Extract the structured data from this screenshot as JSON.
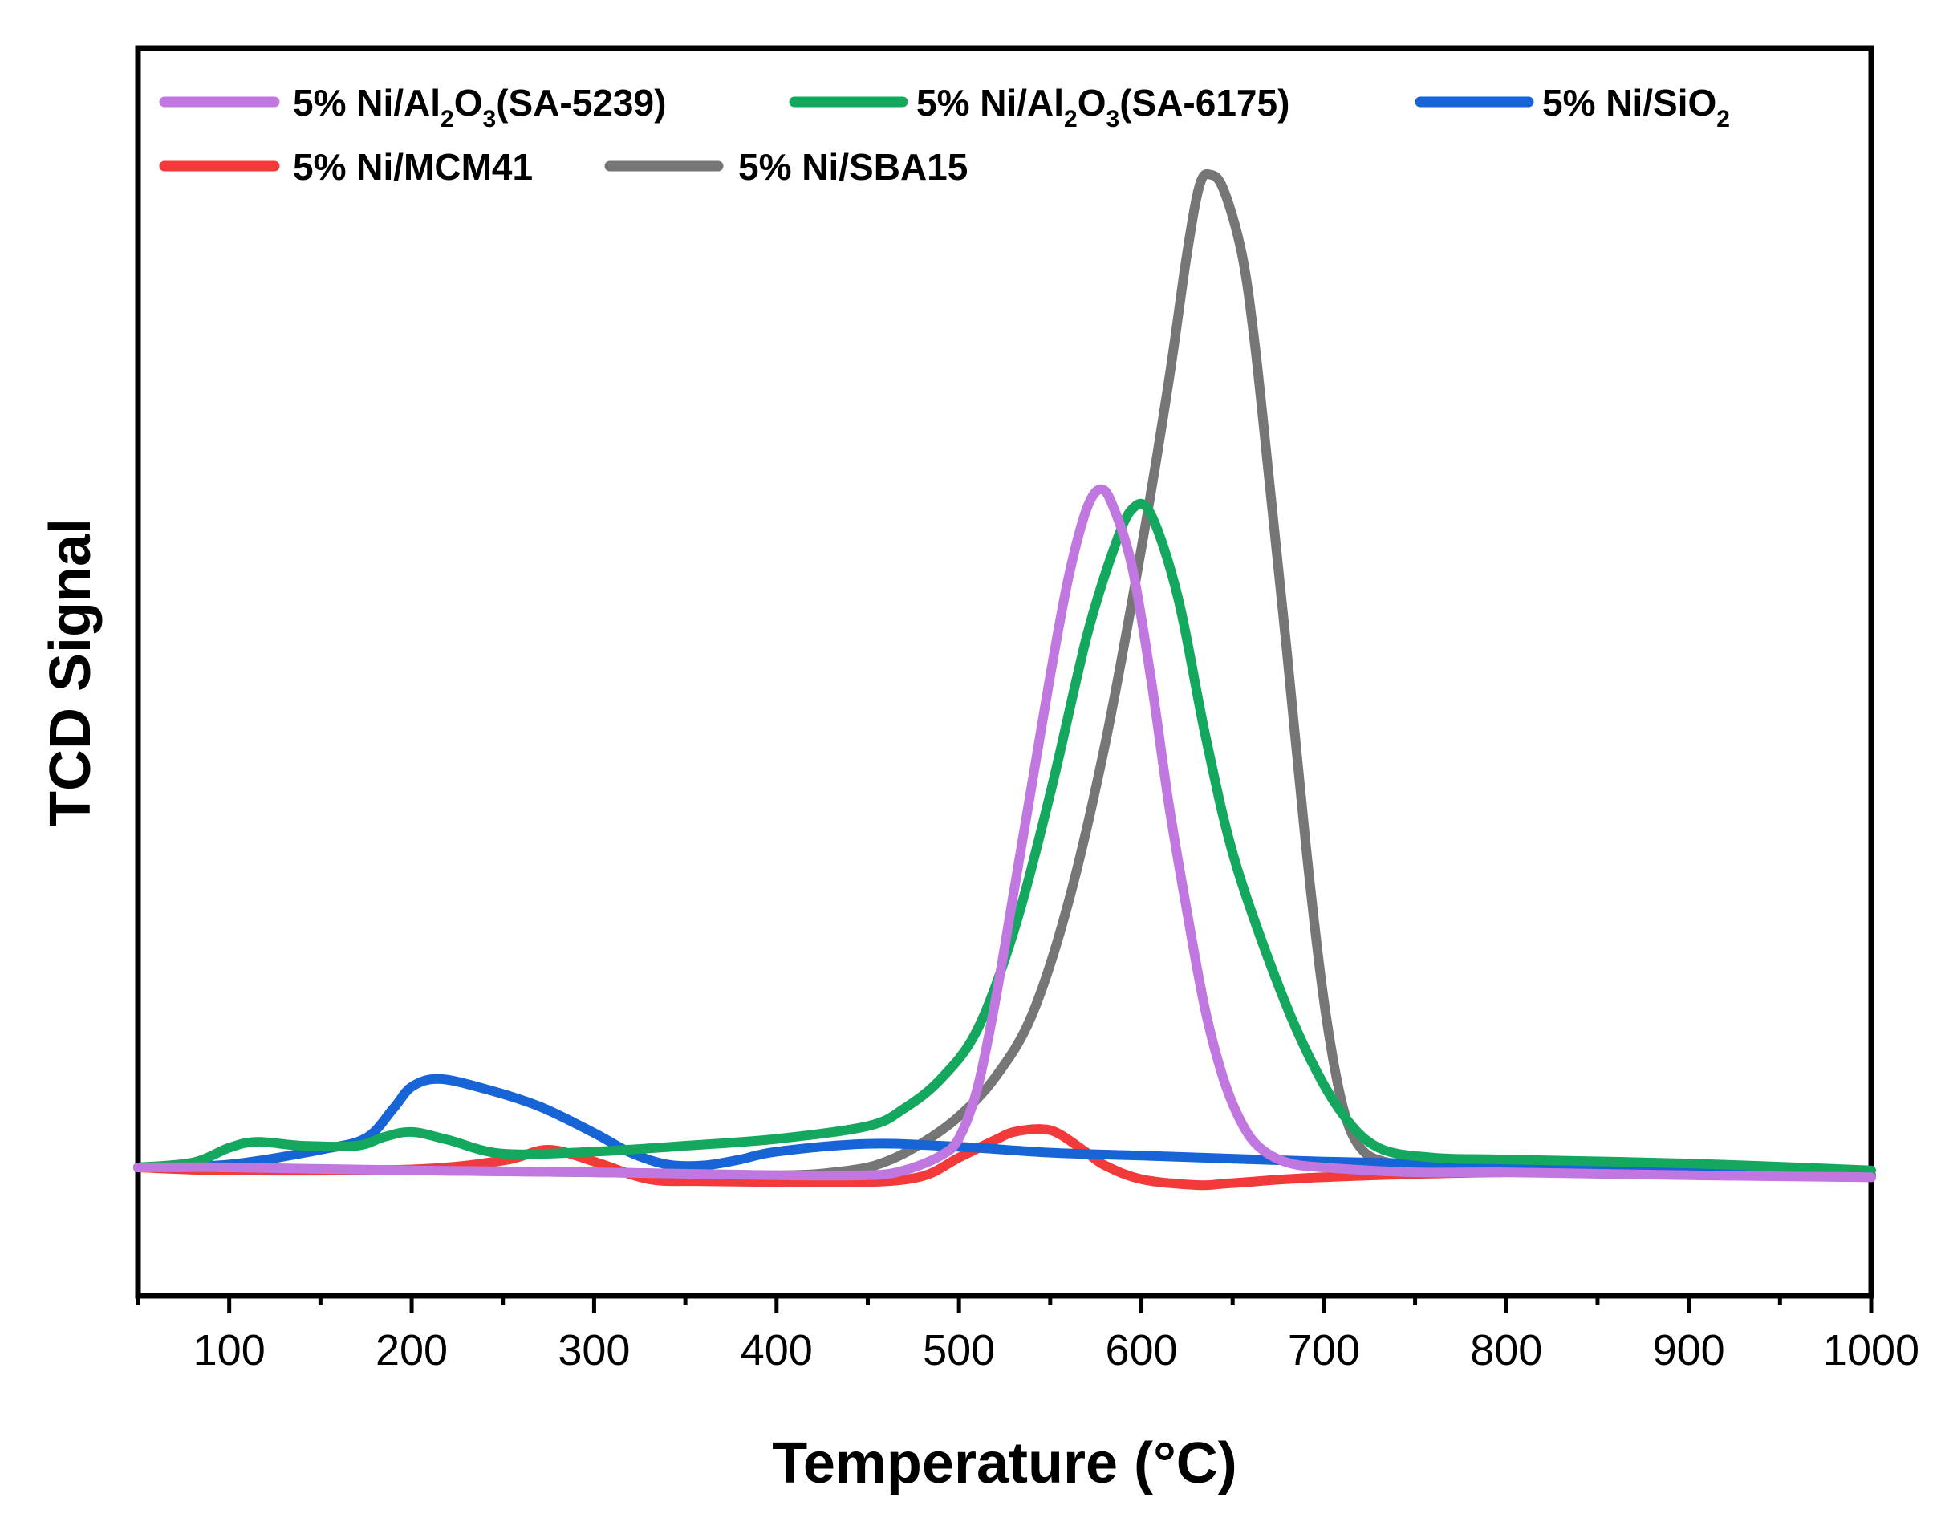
{
  "chart_data": {
    "type": "line",
    "title": "",
    "xlabel": "Temperature (°C)",
    "ylabel": "TCD Signal",
    "xlim": [
      50,
      1000
    ],
    "ylim": [
      -10,
      100
    ],
    "x_ticks": [
      100,
      200,
      300,
      400,
      500,
      600,
      700,
      800,
      900,
      1000
    ],
    "x_tick_labels": [
      "100",
      "200",
      "300",
      "400",
      "500",
      "600",
      "700",
      "800",
      "900",
      "1000"
    ],
    "y_ticks_shown": false,
    "legend_position": "top-left",
    "legend_parts": [
      {
        "series": "5% Ni/Al2O3(SA-5239)",
        "text": "5% Ni/Al",
        "sub1": "2",
        "mid": "O",
        "sub2": "3",
        "tail": "(SA-5239)"
      },
      {
        "series": "5% Ni/Al2O3(SA-6175)",
        "text": "5% Ni/Al",
        "sub1": "2",
        "mid": "O",
        "sub2": "3",
        "tail": "(SA-6175)"
      },
      {
        "series": "5% Ni/SiO2",
        "text": "5% Ni/SiO",
        "sub1": "2",
        "mid": "",
        "sub2": "",
        "tail": ""
      },
      {
        "series": "5% Ni/MCM41",
        "text": "5% Ni/MCM41",
        "sub1": "",
        "mid": "",
        "sub2": "",
        "tail": ""
      },
      {
        "series": "5% Ni/SBA15",
        "text": "5% Ni/SBA15",
        "sub1": "",
        "mid": "",
        "sub2": "",
        "tail": ""
      }
    ],
    "series": [
      {
        "name": "5% Ni/Al2O3(SA-5239)",
        "color": "#c177e0",
        "x": [
          50,
          100,
          200,
          300,
          400,
          450,
          470,
          490,
          500,
          510,
          520,
          530,
          540,
          550,
          560,
          570,
          578,
          585,
          595,
          605,
          615,
          625,
          635,
          645,
          655,
          665,
          680,
          700,
          750,
          800,
          900,
          1000
        ],
        "y": [
          0,
          0,
          -0.3,
          -0.5,
          -0.8,
          -0.8,
          -0.3,
          1.2,
          3,
          8,
          17,
          28,
          39,
          50,
          60,
          67,
          69,
          67,
          61,
          50,
          37,
          26,
          16,
          9,
          4.5,
          2,
          0.5,
          0,
          -0.5,
          -0.5,
          -0.8,
          -1
        ]
      },
      {
        "name": "5% Ni/Al2O3(SA-6175)",
        "color": "#14a85e",
        "x": [
          50,
          80,
          100,
          115,
          140,
          170,
          185,
          200,
          220,
          250,
          300,
          350,
          400,
          450,
          470,
          490,
          510,
          530,
          550,
          570,
          585,
          595,
          605,
          620,
          635,
          650,
          670,
          690,
          710,
          730,
          760,
          800,
          900,
          1000
        ],
        "y": [
          0,
          0.5,
          2,
          2.6,
          2.2,
          2.2,
          3.1,
          3.6,
          2.8,
          1.4,
          1.6,
          2.2,
          2.9,
          4.2,
          6,
          9,
          14,
          24,
          38,
          54,
          63,
          67,
          66.5,
          58,
          44,
          32,
          21,
          12,
          5.5,
          2,
          1,
          0.8,
          0.4,
          -0.3
        ]
      },
      {
        "name": "5% Ni/SiO2",
        "color": "#1664d6",
        "x": [
          50,
          100,
          150,
          175,
          190,
          200,
          215,
          240,
          270,
          300,
          320,
          340,
          360,
          380,
          400,
          450,
          500,
          550,
          600,
          700,
          800,
          900,
          1000
        ],
        "y": [
          0,
          0.3,
          1.8,
          3,
          6,
          8.2,
          9,
          8,
          6.2,
          3.5,
          1.5,
          0.3,
          0.2,
          0.8,
          1.6,
          2.4,
          2.1,
          1.5,
          1.2,
          0.6,
          0.2,
          -0.3,
          -1
        ]
      },
      {
        "name": "5% Ni/MCM41",
        "color": "#f23a3a",
        "x": [
          50,
          100,
          200,
          250,
          275,
          300,
          330,
          360,
          400,
          450,
          480,
          500,
          520,
          530,
          545,
          555,
          570,
          580,
          600,
          630,
          650,
          700,
          800,
          900,
          1000
        ],
        "y": [
          0,
          -0.3,
          -0.2,
          0.7,
          1.8,
          0.6,
          -1.2,
          -1.4,
          -1.5,
          -1.5,
          -0.9,
          1,
          2.8,
          3.6,
          3.9,
          3.4,
          1.5,
          0.2,
          -1.2,
          -1.8,
          -1.6,
          -1,
          -0.5,
          -0.7,
          -1
        ]
      },
      {
        "name": "5% Ni/SBA15",
        "color": "#767676",
        "x": [
          50,
          100,
          200,
          300,
          400,
          440,
          460,
          480,
          500,
          520,
          540,
          560,
          580,
          600,
          615,
          625,
          632,
          638,
          645,
          655,
          662,
          670,
          680,
          690,
          700,
          710,
          720,
          735,
          760,
          800,
          900,
          1000
        ],
        "y": [
          0,
          -0.1,
          -0.3,
          -0.5,
          -0.8,
          -0.3,
          0.6,
          2.5,
          5.2,
          9.2,
          15.5,
          27,
          43,
          63,
          80,
          93,
          100,
          101,
          99.5,
          93,
          84,
          70,
          52,
          33,
          17,
          6.5,
          2,
          0.5,
          0,
          -0.3,
          -0.5,
          -0.8
        ]
      }
    ]
  }
}
